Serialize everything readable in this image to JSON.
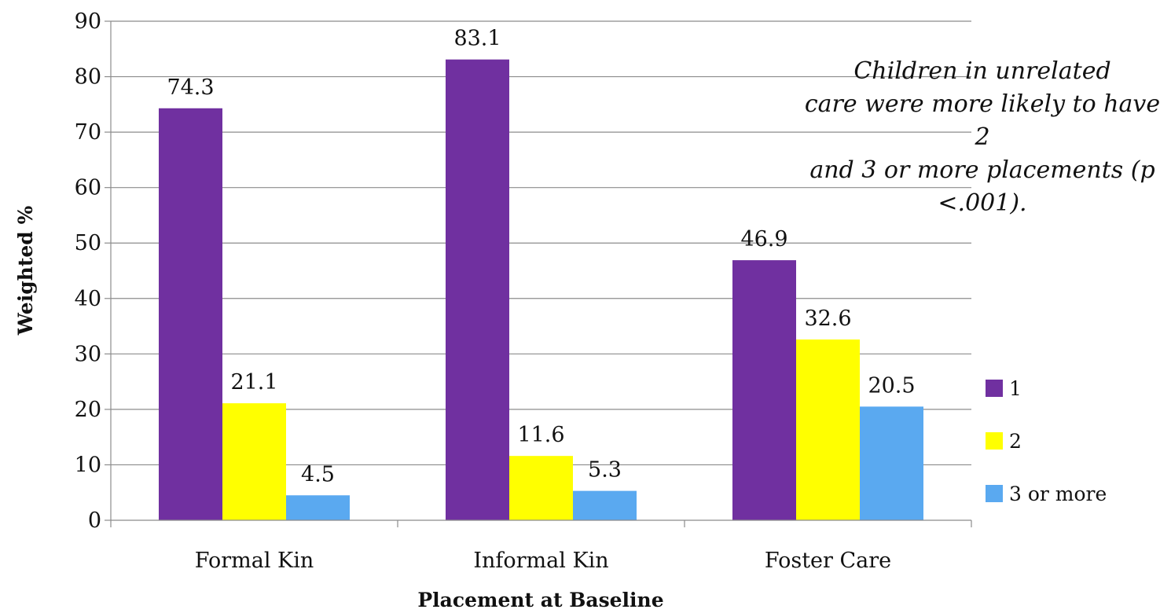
{
  "chart_data": {
    "type": "bar",
    "categories": [
      "Formal Kin",
      "Informal Kin",
      "Foster Care"
    ],
    "series": [
      {
        "name": "1",
        "values": [
          74.3,
          83.1,
          46.9
        ],
        "labels": [
          "74.3",
          "83.1",
          "46.9"
        ],
        "color": "#7030A0"
      },
      {
        "name": "2",
        "values": [
          21.1,
          11.6,
          32.6
        ],
        "labels": [
          "21.1",
          "11.6",
          "32.6"
        ],
        "color": "#FFFF00"
      },
      {
        "name": "3 or more",
        "values": [
          4.5,
          5.3,
          20.5
        ],
        "labels": [
          "4.5",
          "5.3",
          "20.5"
        ],
        "color": "#5AA9F0"
      }
    ],
    "xlabel": "Placement at Baseline",
    "ylabel": "Weighted %",
    "ylim": [
      0,
      90
    ],
    "yticks": [
      0,
      10,
      20,
      30,
      40,
      50,
      60,
      70,
      80,
      90
    ],
    "grid": true,
    "legend_position": "right",
    "annotation": "Children in unrelated\ncare were more likely to have 2\nand 3 or more placements (p\n<.001)."
  }
}
